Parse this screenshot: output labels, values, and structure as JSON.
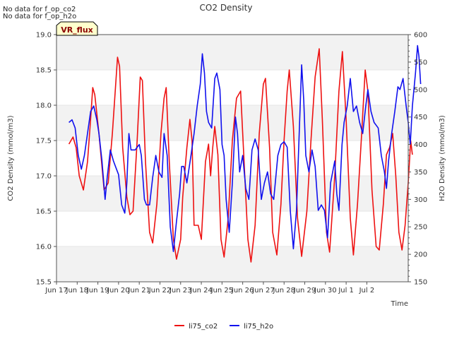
{
  "notes": {
    "no_data_co2": "No data for f_op_co2",
    "no_data_h2o": "No data for f_op_h2o"
  },
  "badge": {
    "label": "VR_flux",
    "fill": "#ffffcc",
    "text_color": "#8b0000"
  },
  "colors": {
    "co2": "#ee1111",
    "h2o": "#1111ee",
    "band": "#f2f2f2",
    "axis": "#555555"
  },
  "chart_data": {
    "type": "line",
    "title": "CO2 Density",
    "xlabel": "Time",
    "ylabel_left": "CO2 Density (mmol/m3)",
    "ylabel_right": "H2O Density (mmol/m3)",
    "ylim_left": [
      15.5,
      19.0
    ],
    "ylim_right": [
      150,
      600
    ],
    "xlim_days": [
      0,
      17
    ],
    "x_ticks": [
      {
        "label": "Jun 17",
        "day": 0
      },
      {
        "label": "Jun 18",
        "day": 1
      },
      {
        "label": "Jun 19",
        "day": 2
      },
      {
        "label": "Jun 20",
        "day": 3
      },
      {
        "label": "Jun 21",
        "day": 4
      },
      {
        "label": "Jun 22",
        "day": 5
      },
      {
        "label": "Jun 23",
        "day": 6
      },
      {
        "label": "Jun 24",
        "day": 7
      },
      {
        "label": "Jun 25",
        "day": 8
      },
      {
        "label": "Jun 26",
        "day": 9
      },
      {
        "label": "Jun 27",
        "day": 10
      },
      {
        "label": "Jun 28",
        "day": 11
      },
      {
        "label": "Jun 29",
        "day": 12
      },
      {
        "label": "Jun 30",
        "day": 13
      },
      {
        "label": "Jul 1",
        "day": 14
      },
      {
        "label": "Jul 2",
        "day": 15
      }
    ],
    "y_ticks_left": [
      "15.5",
      "16.0",
      "16.5",
      "17.0",
      "17.5",
      "18.0",
      "18.5",
      "19.0"
    ],
    "y_ticks_right": [
      "150",
      "200",
      "250",
      "300",
      "350",
      "400",
      "450",
      "500",
      "550",
      "600"
    ],
    "legend": [
      "li75_co2",
      "li75_h2o"
    ],
    "legend_position": "bottom-center",
    "series": [
      {
        "name": "li75_co2",
        "axis": "left",
        "color": "#ee1111",
        "points": [
          [
            0.6,
            17.45
          ],
          [
            0.8,
            17.55
          ],
          [
            0.95,
            17.4
          ],
          [
            1.1,
            17.0
          ],
          [
            1.3,
            16.8
          ],
          [
            1.5,
            17.2
          ],
          [
            1.65,
            17.8
          ],
          [
            1.75,
            18.25
          ],
          [
            1.85,
            18.15
          ],
          [
            2.05,
            17.6
          ],
          [
            2.3,
            16.8
          ],
          [
            2.5,
            16.9
          ],
          [
            2.7,
            17.6
          ],
          [
            2.85,
            18.25
          ],
          [
            2.95,
            18.68
          ],
          [
            3.05,
            18.55
          ],
          [
            3.2,
            17.4
          ],
          [
            3.4,
            16.7
          ],
          [
            3.55,
            16.45
          ],
          [
            3.7,
            16.5
          ],
          [
            3.9,
            17.5
          ],
          [
            4.05,
            18.4
          ],
          [
            4.15,
            18.35
          ],
          [
            4.3,
            17.2
          ],
          [
            4.5,
            16.2
          ],
          [
            4.65,
            16.05
          ],
          [
            4.85,
            16.6
          ],
          [
            5.05,
            17.6
          ],
          [
            5.2,
            18.1
          ],
          [
            5.3,
            18.25
          ],
          [
            5.45,
            17.2
          ],
          [
            5.65,
            16.1
          ],
          [
            5.8,
            15.82
          ],
          [
            6.0,
            16.1
          ],
          [
            6.1,
            16.7
          ],
          [
            6.3,
            17.4
          ],
          [
            6.45,
            17.8
          ],
          [
            6.55,
            17.5
          ],
          [
            6.65,
            16.3
          ],
          [
            6.85,
            16.3
          ],
          [
            7.0,
            16.1
          ],
          [
            7.2,
            17.2
          ],
          [
            7.35,
            17.45
          ],
          [
            7.45,
            17.0
          ],
          [
            7.55,
            17.4
          ],
          [
            7.65,
            17.7
          ],
          [
            7.8,
            17.3
          ],
          [
            7.95,
            16.1
          ],
          [
            8.1,
            15.85
          ],
          [
            8.3,
            16.4
          ],
          [
            8.5,
            17.5
          ],
          [
            8.7,
            18.1
          ],
          [
            8.9,
            18.2
          ],
          [
            9.1,
            17.0
          ],
          [
            9.25,
            16.1
          ],
          [
            9.4,
            15.78
          ],
          [
            9.6,
            16.3
          ],
          [
            9.8,
            17.6
          ],
          [
            10.0,
            18.3
          ],
          [
            10.1,
            18.38
          ],
          [
            10.3,
            17.4
          ],
          [
            10.45,
            16.2
          ],
          [
            10.65,
            15.88
          ],
          [
            10.85,
            16.6
          ],
          [
            11.0,
            17.5
          ],
          [
            11.15,
            18.2
          ],
          [
            11.25,
            18.5
          ],
          [
            11.45,
            17.7
          ],
          [
            11.65,
            16.4
          ],
          [
            11.85,
            15.86
          ],
          [
            12.1,
            16.5
          ],
          [
            12.3,
            17.5
          ],
          [
            12.5,
            18.4
          ],
          [
            12.7,
            18.8
          ],
          [
            12.85,
            17.8
          ],
          [
            13.05,
            16.2
          ],
          [
            13.2,
            15.92
          ],
          [
            13.45,
            17.0
          ],
          [
            13.65,
            18.2
          ],
          [
            13.82,
            18.76
          ],
          [
            14.0,
            17.8
          ],
          [
            14.2,
            16.4
          ],
          [
            14.35,
            15.88
          ],
          [
            14.55,
            16.6
          ],
          [
            14.75,
            17.6
          ],
          [
            14.92,
            18.5
          ],
          [
            15.05,
            18.2
          ],
          [
            15.25,
            16.8
          ],
          [
            15.45,
            16.0
          ],
          [
            15.6,
            15.95
          ],
          [
            15.8,
            16.6
          ],
          [
            15.95,
            17.3
          ],
          [
            16.1,
            17.4
          ],
          [
            16.25,
            17.6
          ],
          [
            16.4,
            17.0
          ],
          [
            16.55,
            16.2
          ],
          [
            16.7,
            15.95
          ],
          [
            16.85,
            16.3
          ],
          [
            17.0,
            16.9
          ],
          [
            17.12,
            17.5
          ],
          [
            17.2,
            17.3
          ]
        ]
      },
      {
        "name": "li75_h2o",
        "axis": "right",
        "color": "#1111ee",
        "points": [
          [
            0.6,
            440
          ],
          [
            0.75,
            445
          ],
          [
            0.9,
            430
          ],
          [
            1.05,
            380
          ],
          [
            1.2,
            355
          ],
          [
            1.35,
            380
          ],
          [
            1.5,
            420
          ],
          [
            1.65,
            460
          ],
          [
            1.8,
            470
          ],
          [
            1.95,
            445
          ],
          [
            2.05,
            420
          ],
          [
            2.2,
            370
          ],
          [
            2.35,
            300
          ],
          [
            2.45,
            340
          ],
          [
            2.6,
            390
          ],
          [
            2.75,
            370
          ],
          [
            2.85,
            360
          ],
          [
            3.0,
            345
          ],
          [
            3.15,
            290
          ],
          [
            3.3,
            275
          ],
          [
            3.4,
            330
          ],
          [
            3.5,
            420
          ],
          [
            3.6,
            390
          ],
          [
            3.8,
            390
          ],
          [
            4.0,
            400
          ],
          [
            4.1,
            380
          ],
          [
            4.25,
            300
          ],
          [
            4.35,
            290
          ],
          [
            4.5,
            290
          ],
          [
            4.65,
            340
          ],
          [
            4.8,
            380
          ],
          [
            4.95,
            350
          ],
          [
            5.1,
            340
          ],
          [
            5.2,
            420
          ],
          [
            5.35,
            380
          ],
          [
            5.5,
            250
          ],
          [
            5.65,
            205
          ],
          [
            5.8,
            260
          ],
          [
            5.95,
            310
          ],
          [
            6.05,
            360
          ],
          [
            6.15,
            360
          ],
          [
            6.3,
            330
          ],
          [
            6.5,
            380
          ],
          [
            6.65,
            420
          ],
          [
            6.8,
            470
          ],
          [
            6.95,
            510
          ],
          [
            7.05,
            565
          ],
          [
            7.15,
            530
          ],
          [
            7.25,
            460
          ],
          [
            7.35,
            440
          ],
          [
            7.5,
            430
          ],
          [
            7.65,
            520
          ],
          [
            7.75,
            530
          ],
          [
            7.9,
            500
          ],
          [
            8.0,
            400
          ],
          [
            8.1,
            380
          ],
          [
            8.2,
            300
          ],
          [
            8.35,
            240
          ],
          [
            8.5,
            330
          ],
          [
            8.65,
            450
          ],
          [
            8.75,
            420
          ],
          [
            8.85,
            350
          ],
          [
            9.0,
            380
          ],
          [
            9.15,
            320
          ],
          [
            9.3,
            300
          ],
          [
            9.45,
            390
          ],
          [
            9.6,
            410
          ],
          [
            9.75,
            390
          ],
          [
            9.9,
            300
          ],
          [
            10.05,
            330
          ],
          [
            10.2,
            350
          ],
          [
            10.35,
            310
          ],
          [
            10.5,
            300
          ],
          [
            10.7,
            380
          ],
          [
            10.85,
            400
          ],
          [
            11.0,
            405
          ],
          [
            11.15,
            395
          ],
          [
            11.3,
            280
          ],
          [
            11.45,
            210
          ],
          [
            11.6,
            280
          ],
          [
            11.75,
            440
          ],
          [
            11.85,
            545
          ],
          [
            11.95,
            480
          ],
          [
            12.05,
            380
          ],
          [
            12.2,
            350
          ],
          [
            12.35,
            390
          ],
          [
            12.5,
            360
          ],
          [
            12.65,
            280
          ],
          [
            12.8,
            290
          ],
          [
            12.95,
            280
          ],
          [
            13.1,
            230
          ],
          [
            13.25,
            330
          ],
          [
            13.45,
            370
          ],
          [
            13.55,
            310
          ],
          [
            13.65,
            280
          ],
          [
            13.8,
            400
          ],
          [
            13.9,
            440
          ],
          [
            14.05,
            470
          ],
          [
            14.2,
            520
          ],
          [
            14.35,
            460
          ],
          [
            14.5,
            470
          ],
          [
            14.65,
            440
          ],
          [
            14.8,
            420
          ],
          [
            14.95,
            470
          ],
          [
            15.05,
            500
          ],
          [
            15.2,
            460
          ],
          [
            15.35,
            440
          ],
          [
            15.55,
            430
          ],
          [
            15.7,
            380
          ],
          [
            15.85,
            350
          ],
          [
            15.95,
            320
          ],
          [
            16.05,
            370
          ],
          [
            16.2,
            420
          ],
          [
            16.35,
            460
          ],
          [
            16.5,
            505
          ],
          [
            16.6,
            500
          ],
          [
            16.75,
            520
          ],
          [
            16.9,
            470
          ],
          [
            17.0,
            440
          ],
          [
            17.1,
            400
          ],
          [
            17.2,
            470
          ],
          [
            17.35,
            530
          ],
          [
            17.45,
            580
          ],
          [
            17.52,
            560
          ],
          [
            17.6,
            510
          ]
        ]
      }
    ]
  }
}
